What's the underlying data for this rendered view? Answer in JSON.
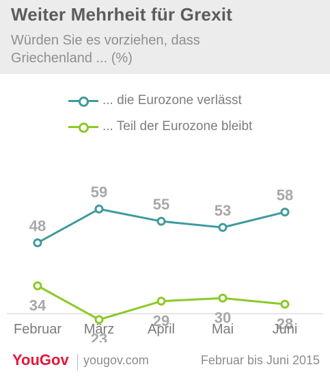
{
  "header": {
    "title": "Weiter Mehrheit  für Grexit",
    "subtitle": "Würden Sie es vorziehen, dass Griechenland ... (%)"
  },
  "footer": {
    "logo": "YouGov",
    "site": "yougov.com",
    "period": "Februar bis Juni 2015"
  },
  "colors": {
    "teal": "#3f9a9d",
    "green": "#8bc926",
    "value_label": "#a8a8a8",
    "axis_label": "#7a7a7a"
  },
  "chart_data": {
    "type": "line",
    "categories": [
      "Februar",
      "März",
      "April",
      "Mai",
      "Juni"
    ],
    "series": [
      {
        "name": "... die Eurozone verlässt",
        "values": [
          48,
          59,
          55,
          53,
          58
        ],
        "color": "#3f9a9d",
        "labels_position": "above"
      },
      {
        "name": "... Teil der Eurozone bleibt",
        "values": [
          34,
          23,
          29,
          30,
          28
        ],
        "color": "#8bc926",
        "labels_position": "below"
      }
    ],
    "title": "Weiter Mehrheit  für Grexit",
    "xlabel": "",
    "ylabel": "",
    "ylim": [
      0,
      70
    ],
    "grid": false,
    "legend": "top"
  }
}
